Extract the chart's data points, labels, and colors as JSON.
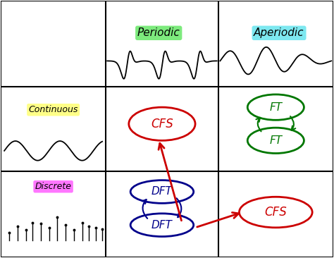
{
  "bg_color": "#ffffff",
  "periodic_label": "Periodic",
  "periodic_bg": "#7dea7d",
  "aperiodic_label": "Aperiodic",
  "aperiodic_bg": "#7de8f0",
  "continuous_label": "Continuous",
  "continuous_bg": "#ffff88",
  "discrete_label": "Discrete",
  "discrete_bg": "#ff77ff",
  "cfs_color": "#cc0000",
  "dft_color": "#00008b",
  "ft_color": "#007700",
  "arrow_color": "#cc0000",
  "line_color": "#000000",
  "col1": 0.315,
  "col2": 0.655,
  "row1": 0.665,
  "row2": 0.335
}
